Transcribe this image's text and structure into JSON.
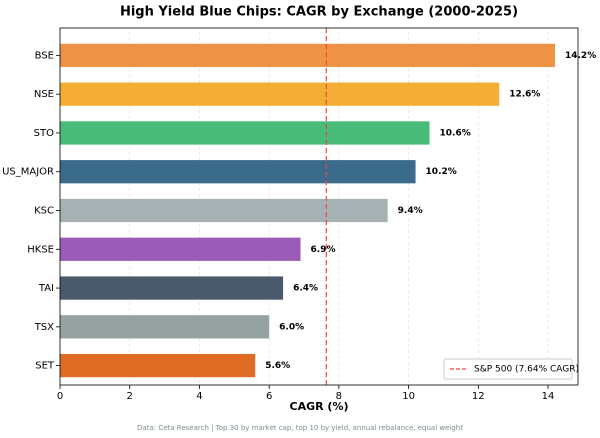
{
  "chart_data": {
    "type": "barh",
    "title": "High Yield Blue Chips: CAGR by Exchange (2000-2025)",
    "xlabel": "CAGR (%)",
    "footnote": "Data: Ceta Research | Top 30 by market cap, top 10 by yield, annual rebalance, equal weight",
    "categories": [
      "BSE",
      "NSE",
      "STO",
      "US_MAJOR",
      "KSC",
      "HKSE",
      "TAI",
      "TSX",
      "SET"
    ],
    "values": [
      14.2,
      12.6,
      10.6,
      10.2,
      9.4,
      6.9,
      6.4,
      6.0,
      5.6
    ],
    "value_labels": [
      "14.2%",
      "12.6%",
      "10.6%",
      "10.2%",
      "9.4%",
      "6.9%",
      "6.4%",
      "6.0%",
      "5.6%"
    ],
    "colors": [
      "#ee9346",
      "#f4ad35",
      "#47bb77",
      "#3b6b8b",
      "#a5b1b2",
      "#9b5cb8",
      "#4a5a6a",
      "#95a2a1",
      "#df6b24"
    ],
    "xlim": [
      0,
      14.86
    ],
    "xticks": [
      0,
      2,
      4,
      6,
      8,
      10,
      12,
      14
    ],
    "grid": true,
    "reference": {
      "value": 7.64,
      "label": "S&P 500 (7.64% CAGR)",
      "color": "#e74c3c"
    },
    "legend_position": "lower right"
  }
}
